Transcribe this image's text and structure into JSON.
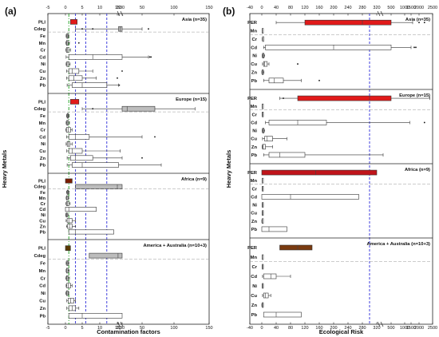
{
  "figure": {
    "left_panel_letter": "(a)",
    "right_panel_letter": "(b)",
    "left_ylabel": "Heavy Metals",
    "right_ylabel": "Heavy Metals",
    "left_xlabel": "Contamination factors",
    "right_xlabel": "Ecological Risk",
    "left_ticks": [
      "-5",
      "0",
      "5",
      "10",
      "15",
      "20",
      "30",
      "50",
      "100",
      "150"
    ],
    "right_ticks": [
      "-40",
      "0",
      "40",
      "80",
      "120",
      "160",
      "200",
      "240",
      "280",
      "320",
      "500",
      "1000",
      "1500",
      "2000",
      "2500"
    ]
  },
  "chart_data": [
    {
      "type": "box",
      "panel": "a",
      "xlabel": "Contamination factors",
      "ylabel": "Heavy Metals",
      "x_axis": "broken scale: -5 to 20 linear, 20 to 30 compressed, 30 to 150 compressed",
      "reference_lines": [
        {
          "x": 1,
          "style": "green dash-dot"
        },
        {
          "x": 3,
          "style": "blue dashed"
        },
        {
          "x": 6,
          "style": "blue dashed"
        },
        {
          "x": 12,
          "style": "blue dashed"
        }
      ],
      "regions": [
        {
          "name": "Asia (n=35)",
          "rows": [
            {
              "label": "PLI",
              "q1": 1.5,
              "q3": 3.5,
              "fill": "#e11a1a"
            },
            {
              "label": "Cdeg",
              "wmin": 3,
              "q1": 20,
              "med": 24,
              "q3": 30,
              "wmax": 50,
              "fill": "#bdbdbd",
              "outliers": [
                5,
                8,
                60
              ]
            },
            {
              "label": "Fe",
              "wmin": 0.2,
              "q1": 0.4,
              "med": 0.6,
              "q3": 0.8,
              "wmax": 1.0
            },
            {
              "label": "Mn",
              "wmin": 0.1,
              "q1": 0.3,
              "med": 0.5,
              "q3": 0.8,
              "wmax": 1.2,
              "outliers": [
                4
              ]
            },
            {
              "label": "Cr",
              "wmin": 0.1,
              "q1": 0.3,
              "med": 0.6,
              "q3": 1.0,
              "wmax": 1.5
            },
            {
              "label": "Cd",
              "wmin": 0.2,
              "q1": 1,
              "med": 8,
              "q3": 30,
              "wmax": 60,
              "outliers": [
                62,
                64
              ]
            },
            {
              "label": "Ni",
              "wmin": 0.2,
              "q1": 0.4,
              "med": 0.7,
              "q3": 1.0,
              "wmax": 1.4
            },
            {
              "label": "Cu",
              "wmin": 0.3,
              "q1": 1,
              "med": 2,
              "q3": 4,
              "wmax": 8,
              "outliers": [
                30
              ]
            },
            {
              "label": "Zn",
              "wmin": 0.3,
              "q1": 1,
              "med": 2.5,
              "q3": 5,
              "wmax": 9,
              "outliers": [
                15
              ]
            },
            {
              "label": "Pb",
              "wmin": 0.5,
              "q1": 2,
              "med": 5,
              "q3": 12,
              "wmax": 20,
              "outliers": [
                22
              ]
            }
          ]
        },
        {
          "name": "Europe (n=15)",
          "rows": [
            {
              "label": "PLI",
              "q1": 1.5,
              "q3": 4,
              "fill": "#e11a1a"
            },
            {
              "label": "Cdeg",
              "wmin": 5,
              "q1": 30,
              "med": 35,
              "q3": 70,
              "wmax": 130,
              "fill": "#bdbdbd",
              "outliers": [
                8
              ]
            },
            {
              "label": "Fe",
              "wmin": 0.3,
              "q1": 0.5,
              "med": 0.7,
              "q3": 0.9,
              "wmax": 1.1
            },
            {
              "label": "Mn",
              "wmin": 0.2,
              "q1": 0.4,
              "med": 0.6,
              "q3": 0.9,
              "wmax": 1.2
            },
            {
              "label": "Cr",
              "wmin": 0.1,
              "q1": 0.3,
              "med": 0.8,
              "q3": 1.5,
              "wmax": 2
            },
            {
              "label": "Cd",
              "wmin": 0.3,
              "q1": 1,
              "med": 3,
              "q3": 7,
              "wmax": 50,
              "outliers": [
                70
              ]
            },
            {
              "label": "Ni",
              "wmin": 0.2,
              "q1": 0.5,
              "med": 0.8,
              "q3": 1.3,
              "wmax": 2
            },
            {
              "label": "Cu",
              "wmin": 0.4,
              "q1": 1,
              "med": 2,
              "q3": 5,
              "wmax": 25
            },
            {
              "label": "Zn",
              "wmin": 0.5,
              "q1": 1.5,
              "med": 3,
              "q3": 8,
              "wmax": 30,
              "outliers": [
                50
              ]
            },
            {
              "label": "Pb",
              "wmin": 0.5,
              "q1": 2,
              "med": 5,
              "q3": 20,
              "wmax": 80
            }
          ]
        },
        {
          "name": "Africa (n=9)",
          "rows": [
            {
              "label": "PLI",
              "q1": 0,
              "q3": 2,
              "fill": "#7a1c00"
            },
            {
              "label": "Cdeg",
              "q1": 3,
              "med": 15,
              "q3": 30,
              "fill": "#bdbdbd"
            },
            {
              "label": "Fe",
              "wmin": 0.3,
              "q1": 0.5,
              "med": 0.7,
              "q3": 0.9,
              "wmax": 1.1
            },
            {
              "label": "Mn",
              "wmin": 0.2,
              "q1": 0.3,
              "med": 0.5,
              "q3": 0.8,
              "wmax": 1.0
            },
            {
              "label": "Cr",
              "wmin": 0.1,
              "q1": 0.3,
              "med": 0.6,
              "q3": 1.0,
              "wmax": 1.4
            },
            {
              "label": "Cd",
              "q1": 0,
              "med": 1,
              "q3": 9
            },
            {
              "label": "Ni",
              "wmin": 0.1,
              "q1": 0.2,
              "med": 0.4,
              "q3": 0.6,
              "wmax": 0.9
            },
            {
              "label": "Cu",
              "wmin": 0.2,
              "q1": 0.5,
              "med": 1,
              "q3": 2,
              "wmax": 3
            },
            {
              "label": "Zn",
              "wmin": 0.3,
              "q1": 0.6,
              "med": 1.2,
              "q3": 2,
              "wmax": 3
            },
            {
              "label": "Pb",
              "q1": 1,
              "med": 3,
              "q3": 14
            }
          ]
        },
        {
          "name": "America + Australia (n=10+3)",
          "rows": [
            {
              "label": "PLI",
              "q1": 0,
              "q3": 1.5,
              "fill": "#5a3a00"
            },
            {
              "label": "Cdeg",
              "q1": 7,
              "med": 18,
              "q3": 30,
              "fill": "#bdbdbd"
            },
            {
              "label": "Fe",
              "wmin": 0.2,
              "q1": 0.4,
              "med": 0.6,
              "q3": 0.8,
              "wmax": 1.0
            },
            {
              "label": "Mn",
              "wmin": 0.2,
              "q1": 0.3,
              "med": 0.5,
              "q3": 0.8,
              "wmax": 1.1
            },
            {
              "label": "Cr",
              "wmin": 0.1,
              "q1": 0.3,
              "med": 0.5,
              "q3": 0.8,
              "wmax": 1.2
            },
            {
              "label": "Cd",
              "wmin": 0.2,
              "q1": 0.4,
              "med": 0.8,
              "q3": 1.5,
              "wmax": 2
            },
            {
              "label": "Ni",
              "wmin": 0.1,
              "q1": 0.3,
              "med": 0.5,
              "q3": 0.8,
              "wmax": 1.0
            },
            {
              "label": "Cu",
              "wmin": 0.4,
              "q1": 0.8,
              "med": 1.5,
              "q3": 2.5,
              "wmax": 3
            },
            {
              "label": "Zn",
              "wmin": 0.4,
              "q1": 1,
              "med": 2,
              "q3": 3,
              "wmax": 4
            },
            {
              "label": "Pb",
              "q1": 1,
              "med": 5,
              "q3": 30
            }
          ]
        }
      ]
    },
    {
      "type": "box",
      "panel": "b",
      "xlabel": "Ecological Risk",
      "ylabel": "Heavy Metals",
      "x_axis": "broken scale: -40 to 320 linear, 500 to 2500 compressed",
      "reference_lines": [
        {
          "x": 300,
          "style": "blue dashed"
        }
      ],
      "regions": [
        {
          "name": "Asia (n=35)",
          "rows": [
            {
              "label": "PER",
              "wmin": 40,
              "q1": 120,
              "med": 280,
              "q3": 500,
              "wmax": 1600,
              "fill": "#e11a1a",
              "outliers": [
                2000,
                2200
              ]
            },
            {
              "label": "Mn",
              "wmin": 1,
              "q1": 1,
              "med": 1,
              "q3": 1,
              "wmax": 1
            },
            {
              "label": "Cr",
              "wmin": 1,
              "q1": 2,
              "med": 2,
              "q3": 3,
              "wmax": 4
            },
            {
              "label": "Cd",
              "wmin": 5,
              "q1": 10,
              "med": 200,
              "q3": 500,
              "wmax": 1500,
              "outliers": [
                1700,
                1800
              ]
            },
            {
              "label": "Ni",
              "wmin": 1,
              "q1": 2,
              "med": 4,
              "q3": 6,
              "wmax": 8
            },
            {
              "label": "Cu",
              "wmin": 2,
              "q1": 5,
              "med": 8,
              "q3": 15,
              "wmax": 20,
              "outliers": [
                100
              ]
            },
            {
              "label": "Zn",
              "wmin": 0,
              "q1": 1,
              "med": 2,
              "q3": 4,
              "wmax": 6
            },
            {
              "label": "Pb",
              "wmin": 5,
              "q1": 20,
              "med": 35,
              "q3": 60,
              "wmax": 110,
              "outliers": [
                160
              ]
            }
          ]
        },
        {
          "name": "Europe (n=15)",
          "rows": [
            {
              "label": "PER",
              "wmin": 50,
              "q1": 100,
              "med": 300,
              "q3": 500,
              "wmax": 2400,
              "fill": "#e11a1a",
              "outliers": [
                60
              ]
            },
            {
              "label": "Mn",
              "wmin": 1,
              "q1": 1,
              "med": 1,
              "q3": 1,
              "wmax": 1
            },
            {
              "label": "Cr",
              "wmin": 1,
              "q1": 1,
              "med": 2,
              "q3": 3,
              "wmax": 4
            },
            {
              "label": "Cd",
              "wmin": 10,
              "q1": 20,
              "med": 100,
              "q3": 180,
              "wmax": 1400,
              "outliers": [
                2200
              ]
            },
            {
              "label": "Ni",
              "wmin": 1,
              "q1": 2,
              "med": 4,
              "q3": 6,
              "wmax": 8
            },
            {
              "label": "Cu",
              "wmin": 2,
              "q1": 8,
              "med": 15,
              "q3": 30,
              "wmax": 70
            },
            {
              "label": "Zn",
              "wmin": 1,
              "q1": 2,
              "med": 4,
              "q3": 10,
              "wmax": 30
            },
            {
              "label": "Pb",
              "wmin": 5,
              "q1": 20,
              "med": 50,
              "q3": 120,
              "wmax": 400
            }
          ]
        },
        {
          "name": "Africa (n=9)",
          "rows": [
            {
              "label": "PER",
              "q1": 0,
              "med": 150,
              "q3": 320,
              "fill": "#c0141a"
            },
            {
              "label": "Mn",
              "wmin": 1,
              "q1": 1,
              "med": 1,
              "q3": 1,
              "wmax": 1
            },
            {
              "label": "Cr",
              "wmin": 1,
              "q1": 1,
              "med": 2,
              "q3": 2,
              "wmax": 3
            },
            {
              "label": "Cd",
              "q1": 0,
              "med": 80,
              "q3": 270
            },
            {
              "label": "Ni",
              "wmin": 1,
              "q1": 1,
              "med": 2,
              "q3": 3,
              "wmax": 4
            },
            {
              "label": "Cu",
              "wmin": 1,
              "q1": 1,
              "med": 2,
              "q3": 3,
              "wmax": 4
            },
            {
              "label": "Zn",
              "wmin": 0,
              "q1": 1,
              "med": 1,
              "q3": 2,
              "wmax": 3
            },
            {
              "label": "Pb",
              "q1": 0,
              "med": 20,
              "q3": 70
            }
          ]
        },
        {
          "name": "America + Australia (n=10+3)",
          "rows": [
            {
              "label": "PER",
              "q1": 50,
              "med": 100,
              "q3": 140,
              "fill": "#7a3b10"
            },
            {
              "label": "Mn",
              "wmin": 1,
              "q1": 1,
              "med": 1,
              "q3": 1,
              "wmax": 1
            },
            {
              "label": "Cr",
              "wmin": 1,
              "q1": 1,
              "med": 2,
              "q3": 3,
              "wmax": 4
            },
            {
              "label": "Cd",
              "wmin": 2,
              "q1": 5,
              "med": 25,
              "q3": 40,
              "wmax": 80
            },
            {
              "label": "Ni",
              "wmin": 1,
              "q1": 1,
              "med": 2,
              "q3": 3,
              "wmax": 4
            },
            {
              "label": "Cu",
              "wmin": 2,
              "q1": 5,
              "med": 10,
              "q3": 18,
              "wmax": 25
            },
            {
              "label": "Zn",
              "wmin": 0,
              "q1": 1,
              "med": 2,
              "q3": 3,
              "wmax": 4
            },
            {
              "label": "Pb",
              "q1": 5,
              "med": 40,
              "q3": 110
            }
          ]
        }
      ]
    }
  ]
}
